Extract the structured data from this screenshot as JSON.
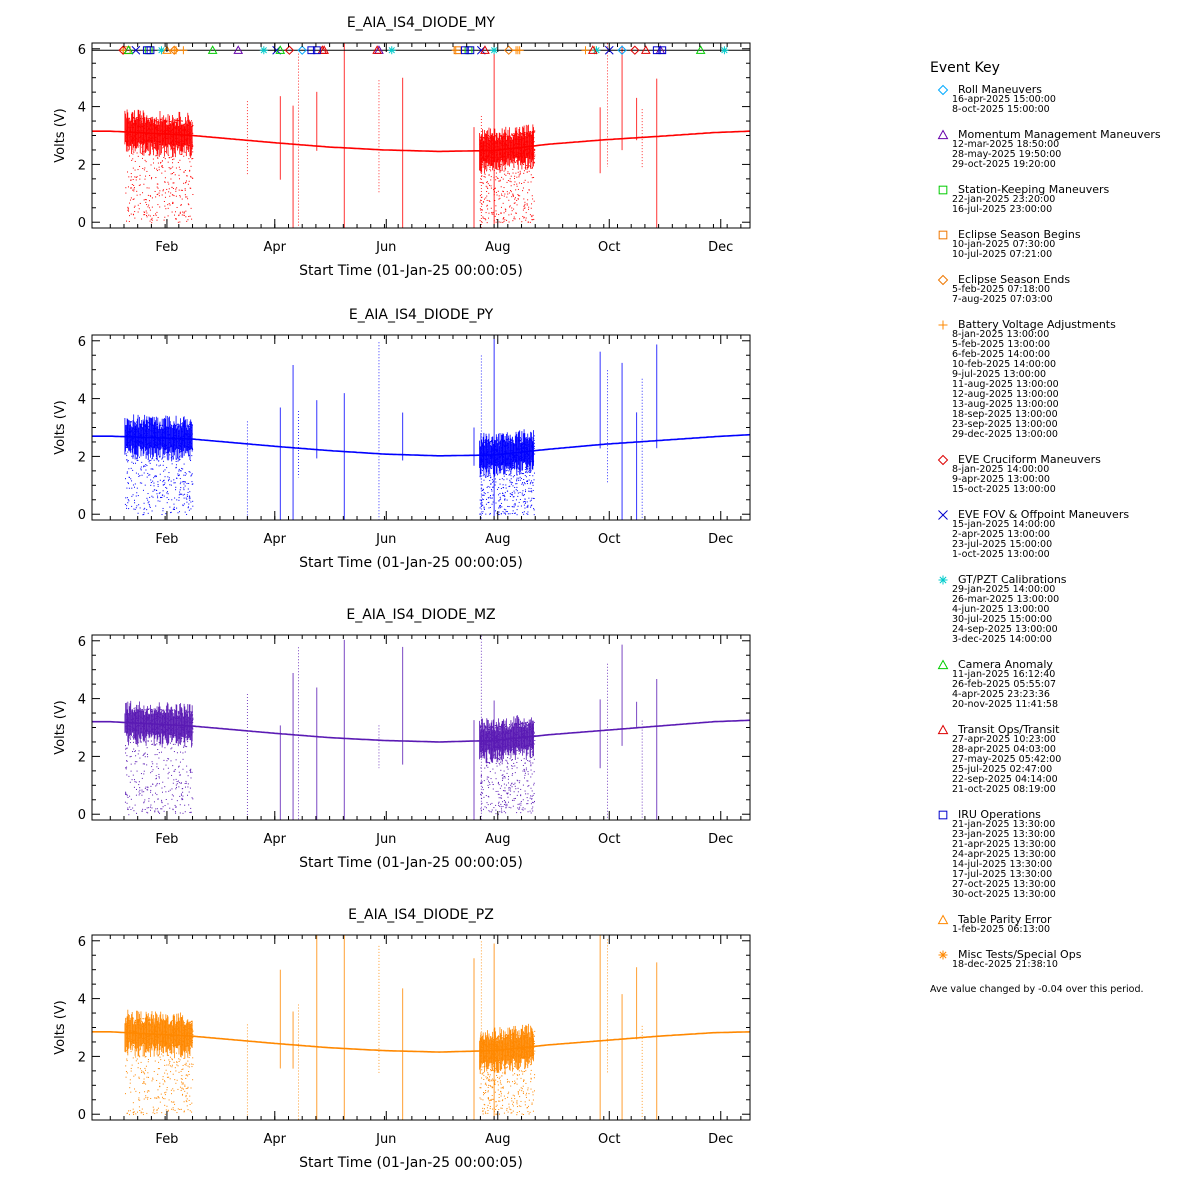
{
  "chart_data": [
    {
      "type": "scatter",
      "title": "E_AIA_IS4_DIODE_MY",
      "xlabel": "Start Time (01-Jan-25 00:00:05)",
      "ylabel": "Volts (V)",
      "color": "#ff0000",
      "x_tick_labels": [
        "Feb",
        "Apr",
        "Jun",
        "Aug",
        "Oct",
        "Dec"
      ],
      "y_ticks": [
        0,
        2,
        4,
        6
      ],
      "xlim_days": [
        -10,
        350
      ],
      "ylim": [
        -0.2,
        6.2
      ],
      "baseline_points": [
        [
          0,
          3.15
        ],
        [
          45,
          3.0
        ],
        [
          90,
          2.75
        ],
        [
          120,
          2.6
        ],
        [
          150,
          2.5
        ],
        [
          180,
          2.45
        ],
        [
          210,
          2.48
        ],
        [
          240,
          2.7
        ],
        [
          270,
          2.85
        ],
        [
          300,
          2.97
        ],
        [
          330,
          3.1
        ],
        [
          350,
          3.15
        ]
      ],
      "show_event_markers": true
    },
    {
      "type": "scatter",
      "title": "E_AIA_IS4_DIODE_PY",
      "xlabel": "Start Time (01-Jan-25 00:00:05)",
      "ylabel": "Volts (V)",
      "color": "#0000ff",
      "x_tick_labels": [
        "Feb",
        "Apr",
        "Jun",
        "Aug",
        "Oct",
        "Dec"
      ],
      "y_ticks": [
        0,
        2,
        4,
        6
      ],
      "xlim_days": [
        -10,
        350
      ],
      "ylim": [
        -0.2,
        6.2
      ],
      "baseline_points": [
        [
          0,
          2.7
        ],
        [
          45,
          2.6
        ],
        [
          90,
          2.35
        ],
        [
          120,
          2.2
        ],
        [
          150,
          2.08
        ],
        [
          180,
          2.02
        ],
        [
          210,
          2.05
        ],
        [
          240,
          2.25
        ],
        [
          270,
          2.42
        ],
        [
          300,
          2.55
        ],
        [
          330,
          2.68
        ],
        [
          350,
          2.75
        ]
      ],
      "show_event_markers": false
    },
    {
      "type": "scatter",
      "title": "E_AIA_IS4_DIODE_MZ",
      "xlabel": "Start Time (01-Jan-25 00:00:05)",
      "ylabel": "Volts (V)",
      "color": "#5a1ab4",
      "x_tick_labels": [
        "Feb",
        "Apr",
        "Jun",
        "Aug",
        "Oct",
        "Dec"
      ],
      "y_ticks": [
        0,
        2,
        4,
        6
      ],
      "xlim_days": [
        -10,
        350
      ],
      "ylim": [
        -0.2,
        6.2
      ],
      "baseline_points": [
        [
          0,
          3.2
        ],
        [
          45,
          3.05
        ],
        [
          90,
          2.8
        ],
        [
          120,
          2.65
        ],
        [
          150,
          2.55
        ],
        [
          180,
          2.5
        ],
        [
          210,
          2.55
        ],
        [
          240,
          2.75
        ],
        [
          270,
          2.9
        ],
        [
          300,
          3.05
        ],
        [
          330,
          3.2
        ],
        [
          350,
          3.25
        ]
      ],
      "show_event_markers": false
    },
    {
      "type": "scatter",
      "title": "E_AIA_IS4_DIODE_PZ",
      "xlabel": "Start Time (01-Jan-25 00:00:05)",
      "ylabel": "Volts (V)",
      "color": "#ff8800",
      "x_tick_labels": [
        "Feb",
        "Apr",
        "Jun",
        "Aug",
        "Oct",
        "Dec"
      ],
      "y_ticks": [
        0,
        2,
        4,
        6
      ],
      "xlim_days": [
        -10,
        350
      ],
      "ylim": [
        -0.2,
        6.2
      ],
      "baseline_points": [
        [
          0,
          2.85
        ],
        [
          45,
          2.7
        ],
        [
          90,
          2.45
        ],
        [
          120,
          2.3
        ],
        [
          150,
          2.2
        ],
        [
          180,
          2.15
        ],
        [
          210,
          2.2
        ],
        [
          240,
          2.4
        ],
        [
          270,
          2.55
        ],
        [
          300,
          2.7
        ],
        [
          330,
          2.82
        ],
        [
          350,
          2.85
        ]
      ],
      "show_event_markers": false
    }
  ],
  "x_tick_days": [
    31,
    90,
    151,
    212,
    273,
    334
  ],
  "event_key": {
    "title": "Event Key",
    "groups": [
      {
        "label": "Roll Maneuvers",
        "symbol": "diamond",
        "color": "#00aaff",
        "dates": [
          "16-apr-2025 15:00:00",
          "8-oct-2025 15:00:00"
        ]
      },
      {
        "label": "Momentum Management Maneuvers",
        "symbol": "triangle",
        "color": "#6600aa",
        "dates": [
          "12-mar-2025 18:50:00",
          "28-may-2025 19:50:00",
          "29-oct-2025 19:20:00"
        ]
      },
      {
        "label": "Station-Keeping Maneuvers",
        "symbol": "square",
        "color": "#00cc00",
        "dates": [
          "22-jan-2025 23:20:00",
          "16-jul-2025 23:00:00"
        ]
      },
      {
        "label": "Eclipse Season Begins",
        "symbol": "square",
        "color": "#ee7700",
        "dates": [
          "10-jan-2025 07:30:00",
          "10-jul-2025 07:21:00"
        ]
      },
      {
        "label": "Eclipse Season Ends",
        "symbol": "diamond",
        "color": "#ee7700",
        "dates": [
          "5-feb-2025 07:18:00",
          "7-aug-2025 07:03:00"
        ]
      },
      {
        "label": "Battery Voltage Adjustments",
        "symbol": "plus",
        "color": "#ff8800",
        "dates": [
          "8-jan-2025 13:00:00",
          "5-feb-2025 13:00:00",
          "6-feb-2025 14:00:00",
          "10-feb-2025 14:00:00",
          "9-jul-2025 13:00:00",
          "11-aug-2025 13:00:00",
          "12-aug-2025 13:00:00",
          "13-aug-2025 13:00:00",
          "18-sep-2025 13:00:00",
          "23-sep-2025 13:00:00",
          "29-dec-2025 13:00:00"
        ]
      },
      {
        "label": "EVE Cruciform Maneuvers",
        "symbol": "diamond",
        "color": "#dd0000",
        "dates": [
          "8-jan-2025 14:00:00",
          "9-apr-2025 13:00:00",
          "15-oct-2025 13:00:00"
        ]
      },
      {
        "label": "EVE FOV & Offpoint Maneuvers",
        "symbol": "x",
        "color": "#0000cc",
        "dates": [
          "15-jan-2025 14:00:00",
          "2-apr-2025 13:00:00",
          "23-jul-2025 15:00:00",
          "1-oct-2025 13:00:00"
        ]
      },
      {
        "label": "GT/PZT Calibrations",
        "symbol": "asterisk",
        "color": "#00cccc",
        "dates": [
          "29-jan-2025 14:00:00",
          "26-mar-2025 13:00:00",
          "4-jun-2025 13:00:00",
          "30-jul-2025 15:00:00",
          "24-sep-2025 13:00:00",
          "3-dec-2025 14:00:00"
        ]
      },
      {
        "label": "Camera Anomaly",
        "symbol": "triangle",
        "color": "#00cc00",
        "dates": [
          "11-jan-2025 16:12:40",
          "26-feb-2025 05:55:07",
          "4-apr-2025 23:23:36",
          "20-nov-2025 11:41:58"
        ]
      },
      {
        "label": "Transit Ops/Transit",
        "symbol": "triangle",
        "color": "#dd0000",
        "dates": [
          "27-apr-2025 10:23:00",
          "28-apr-2025 04:03:00",
          "27-may-2025 05:42:00",
          "25-jul-2025 02:47:00",
          "22-sep-2025 04:14:00",
          "21-oct-2025 08:19:00"
        ]
      },
      {
        "label": "IRU Operations",
        "symbol": "square",
        "color": "#0000cc",
        "dates": [
          "21-jan-2025 13:30:00",
          "23-jan-2025 13:30:00",
          "21-apr-2025 13:30:00",
          "24-apr-2025 13:30:00",
          "14-jul-2025 13:30:00",
          "17-jul-2025 13:30:00",
          "27-oct-2025 13:30:00",
          "30-oct-2025 13:30:00"
        ]
      },
      {
        "label": "Table Parity Error",
        "symbol": "triangle",
        "color": "#ff8800",
        "dates": [
          "1-feb-2025 06:13:00"
        ]
      },
      {
        "label": "Misc Tests/Special Ops",
        "symbol": "asterisk",
        "color": "#ff8800",
        "dates": [
          "18-dec-2025 21:38:10"
        ]
      }
    ],
    "note": "Ave value changed by -0.04 over this period."
  }
}
